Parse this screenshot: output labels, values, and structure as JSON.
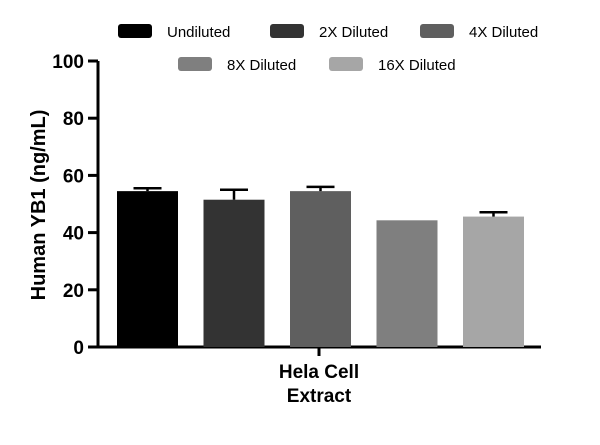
{
  "chart_data": {
    "type": "bar",
    "categories": [
      "Hela Cell Extract"
    ],
    "category_label_lines": [
      "Hela Cell",
      "Extract"
    ],
    "ylabel": "Human YB1 (ng/mL)",
    "ylim": [
      0,
      100
    ],
    "yticks": [
      0,
      20,
      40,
      60,
      80,
      100
    ],
    "grid": false,
    "legend": "top",
    "series": [
      {
        "name": "Undiluted",
        "values": [
          54.5
        ],
        "error": [
          1.0
        ],
        "color": "#000000"
      },
      {
        "name": "2X Diluted",
        "values": [
          51.5
        ],
        "error": [
          3.5
        ],
        "color": "#333333"
      },
      {
        "name": "4X Diluted",
        "values": [
          54.5
        ],
        "error": [
          1.5
        ],
        "color": "#5f5f5f"
      },
      {
        "name": "8X Diluted",
        "values": [
          44.3
        ],
        "error": [
          0.0
        ],
        "color": "#7f7f7f"
      },
      {
        "name": "16X Diluted",
        "values": [
          45.6
        ],
        "error": [
          1.5
        ],
        "color": "#a6a6a6"
      }
    ]
  }
}
